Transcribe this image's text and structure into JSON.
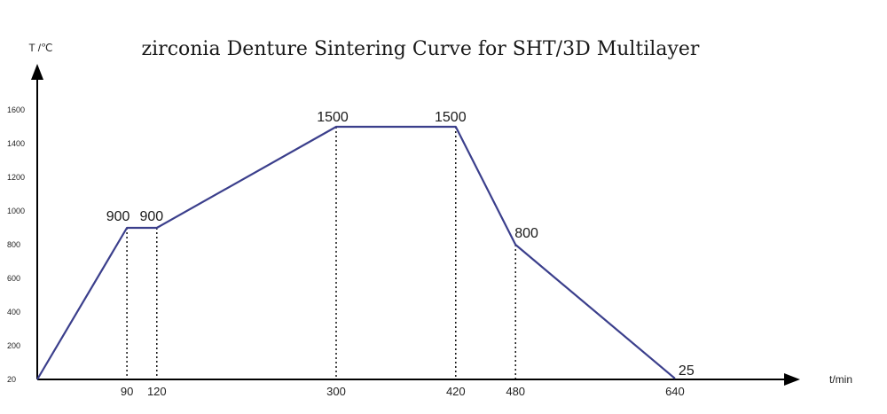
{
  "chart_data": {
    "type": "line",
    "title": "zirconia Denture Sintering Curve for SHT/3D Multilayer",
    "ylabel": "T /℃",
    "xlabel": "t/min",
    "y_ticks": [
      "20",
      "200",
      "400",
      "600",
      "800",
      "1000",
      "1200",
      "1400",
      "1600"
    ],
    "x_ticks": [
      "90",
      "120",
      "300",
      "420",
      "480",
      "640"
    ],
    "series": [
      {
        "x": [
          0,
          90,
          120,
          300,
          420,
          480,
          640
        ],
        "y": [
          20,
          900,
          900,
          1500,
          1500,
          800,
          25
        ]
      }
    ],
    "point_labels": [
      {
        "x": 90,
        "y": 900,
        "text": "900"
      },
      {
        "x": 120,
        "y": 900,
        "text": "900"
      },
      {
        "x": 300,
        "y": 1500,
        "text": "1500"
      },
      {
        "x": 420,
        "y": 1500,
        "text": "1500"
      },
      {
        "x": 480,
        "y": 800,
        "text": "800"
      },
      {
        "x": 640,
        "y": 25,
        "text": "25"
      }
    ],
    "line_color": "#3b3f8c",
    "grid": false
  }
}
